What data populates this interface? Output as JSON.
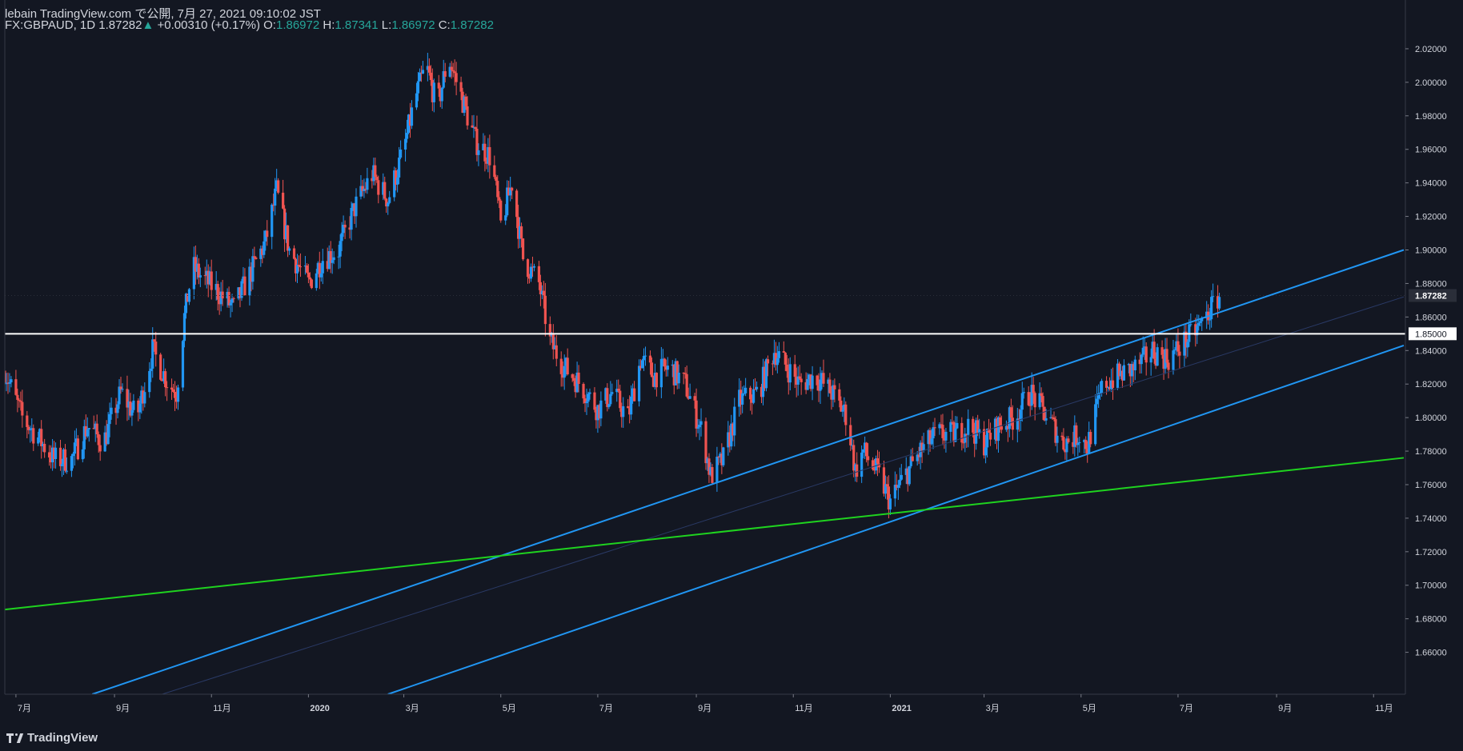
{
  "header": {
    "published": "lebain TradingView.com で公開, 7月 27, 2021 09:10:02 JST",
    "symbol": "FX:GBPAUD, 1D",
    "last": "1.87282",
    "change_arrow": "▲",
    "change": "+0.00310 (+0.17%)",
    "o_label": "O:",
    "o_value": "1.86972",
    "h_label": "H:",
    "h_value": "1.87341",
    "l_label": "L:",
    "l_value": "1.86972",
    "c_label": "C:",
    "c_value": "1.87282"
  },
  "footer": {
    "brand": "TradingView"
  },
  "colors": {
    "background": "#131722",
    "up_candle": "#2962ff",
    "up_candle_light": "#2196f3",
    "down_candle": "#ef5350",
    "trendline": "#2196f3",
    "support_line": "#ffffff",
    "long_trend": "#1fd31f",
    "axis_text": "#d1d4dc",
    "price_label_bg": "#ffffff"
  },
  "chart_data": {
    "type": "candlestick",
    "ylim": [
      1.635,
      2.03
    ],
    "y_ticks": [
      "1.66000",
      "1.68000",
      "1.70000",
      "1.72000",
      "1.74000",
      "1.76000",
      "1.78000",
      "1.80000",
      "1.82000",
      "1.84000",
      "1.86000",
      "1.88000",
      "1.90000",
      "1.92000",
      "1.94000",
      "1.96000",
      "1.98000",
      "2.00000",
      "2.02000"
    ],
    "x_ticks": [
      {
        "label": "7月",
        "date": "2019-07-01"
      },
      {
        "label": "9月",
        "date": "2019-09-01"
      },
      {
        "label": "11月",
        "date": "2019-11-01"
      },
      {
        "label": "2020",
        "date": "2020-01-01"
      },
      {
        "label": "3月",
        "date": "2020-03-01"
      },
      {
        "label": "5月",
        "date": "2020-05-01"
      },
      {
        "label": "7月",
        "date": "2020-07-01"
      },
      {
        "label": "9月",
        "date": "2020-09-01"
      },
      {
        "label": "11月",
        "date": "2020-11-01"
      },
      {
        "label": "2021",
        "date": "2021-01-01"
      },
      {
        "label": "3月",
        "date": "2021-03-01"
      },
      {
        "label": "5月",
        "date": "2021-05-01"
      },
      {
        "label": "7月",
        "date": "2021-07-01"
      },
      {
        "label": "9月",
        "date": "2021-09-01"
      },
      {
        "label": "11月",
        "date": "2021-11-01"
      }
    ],
    "path": [
      [
        "2019-06-24",
        1.828
      ],
      [
        "2019-07-05",
        1.8
      ],
      [
        "2019-07-15",
        1.788
      ],
      [
        "2019-07-25",
        1.775
      ],
      [
        "2019-08-05",
        1.775
      ],
      [
        "2019-08-15",
        1.795
      ],
      [
        "2019-08-25",
        1.785
      ],
      [
        "2019-09-05",
        1.815
      ],
      [
        "2019-09-15",
        1.8
      ],
      [
        "2019-09-25",
        1.84
      ],
      [
        "2019-10-05",
        1.82
      ],
      [
        "2019-10-10",
        1.815
      ],
      [
        "2019-10-15",
        1.86
      ],
      [
        "2019-10-20",
        1.89
      ],
      [
        "2019-10-25",
        1.885
      ],
      [
        "2019-11-05",
        1.875
      ],
      [
        "2019-11-15",
        1.865
      ],
      [
        "2019-11-25",
        1.885
      ],
      [
        "2019-12-05",
        1.905
      ],
      [
        "2019-12-12",
        1.935
      ],
      [
        "2019-12-20",
        1.9
      ],
      [
        "2020-01-01",
        1.88
      ],
      [
        "2020-01-10",
        1.895
      ],
      [
        "2020-01-20",
        1.9
      ],
      [
        "2020-01-30",
        1.925
      ],
      [
        "2020-02-10",
        1.945
      ],
      [
        "2020-02-20",
        1.93
      ],
      [
        "2020-03-01",
        1.96
      ],
      [
        "2020-03-08",
        1.99
      ],
      [
        "2020-03-15",
        2.01
      ],
      [
        "2020-03-22",
        1.985
      ],
      [
        "2020-03-29",
        2.015
      ],
      [
        "2020-04-05",
        1.995
      ],
      [
        "2020-04-15",
        1.965
      ],
      [
        "2020-04-25",
        1.955
      ],
      [
        "2020-05-01",
        1.915
      ],
      [
        "2020-05-08",
        1.94
      ],
      [
        "2020-05-15",
        1.895
      ],
      [
        "2020-05-25",
        1.88
      ],
      [
        "2020-06-01",
        1.845
      ],
      [
        "2020-06-10",
        1.83
      ],
      [
        "2020-06-20",
        1.82
      ],
      [
        "2020-07-01",
        1.805
      ],
      [
        "2020-07-10",
        1.815
      ],
      [
        "2020-07-20",
        1.8
      ],
      [
        "2020-07-28",
        1.835
      ],
      [
        "2020-08-05",
        1.825
      ],
      [
        "2020-08-15",
        1.83
      ],
      [
        "2020-08-25",
        1.82
      ],
      [
        "2020-09-05",
        1.79
      ],
      [
        "2020-09-10",
        1.765
      ],
      [
        "2020-09-18",
        1.775
      ],
      [
        "2020-09-28",
        1.81
      ],
      [
        "2020-10-10",
        1.815
      ],
      [
        "2020-10-20",
        1.84
      ],
      [
        "2020-10-28",
        1.83
      ],
      [
        "2020-11-05",
        1.82
      ],
      [
        "2020-11-15",
        1.825
      ],
      [
        "2020-11-25",
        1.815
      ],
      [
        "2020-12-05",
        1.8
      ],
      [
        "2020-12-10",
        1.768
      ],
      [
        "2020-12-15",
        1.78
      ],
      [
        "2020-12-25",
        1.765
      ],
      [
        "2021-01-01",
        1.75
      ],
      [
        "2021-01-10",
        1.765
      ],
      [
        "2021-01-20",
        1.78
      ],
      [
        "2021-01-30",
        1.79
      ],
      [
        "2021-02-10",
        1.79
      ],
      [
        "2021-02-20",
        1.795
      ],
      [
        "2021-03-01",
        1.785
      ],
      [
        "2021-03-10",
        1.795
      ],
      [
        "2021-03-20",
        1.8
      ],
      [
        "2021-03-30",
        1.815
      ],
      [
        "2021-04-10",
        1.8
      ],
      [
        "2021-04-20",
        1.785
      ],
      [
        "2021-04-30",
        1.79
      ],
      [
        "2021-05-05",
        1.783
      ],
      [
        "2021-05-15",
        1.82
      ],
      [
        "2021-05-25",
        1.825
      ],
      [
        "2021-06-05",
        1.83
      ],
      [
        "2021-06-15",
        1.84
      ],
      [
        "2021-06-25",
        1.835
      ],
      [
        "2021-07-05",
        1.845
      ],
      [
        "2021-07-15",
        1.855
      ],
      [
        "2021-07-27",
        1.8728
      ]
    ],
    "horizontal_lines": [
      {
        "name": "support",
        "y": 1.85,
        "label": "1.85000"
      }
    ],
    "trendlines": [
      {
        "name": "channel-upper",
        "points": [
          [
            "2019-08-18",
            1.635
          ],
          [
            "2021-11-20",
            1.9
          ]
        ]
      },
      {
        "name": "channel-lower",
        "points": [
          [
            "2020-02-20",
            1.635
          ],
          [
            "2021-11-20",
            1.843
          ]
        ]
      },
      {
        "name": "long-term",
        "points": [
          [
            "2019-06-24",
            1.6855
          ],
          [
            "2021-11-20",
            1.776
          ]
        ]
      }
    ],
    "current_price": {
      "y": 1.87282,
      "label": "1.87282"
    }
  }
}
